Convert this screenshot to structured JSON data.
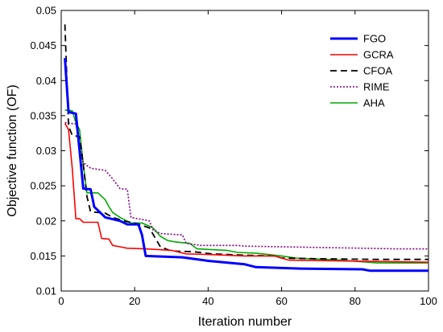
{
  "chart_data": {
    "type": "line",
    "xlabel": "Iteration number",
    "ylabel": "Objective function (OF)",
    "xlim": [
      0,
      100
    ],
    "ylim": [
      0.01,
      0.05
    ],
    "xticks": [
      0,
      20,
      40,
      60,
      80,
      100
    ],
    "xtick_labels": [
      "0",
      "20",
      "40",
      "60",
      "80",
      "100"
    ],
    "yticks": [
      0.01,
      0.015,
      0.02,
      0.025,
      0.03,
      0.035,
      0.04,
      0.045,
      0.05
    ],
    "ytick_labels": [
      "0.01",
      "0.015",
      "0.02",
      "0.025",
      "0.03",
      "0.035",
      "0.04",
      "0.045",
      "0.05"
    ],
    "grid": false,
    "legend_position": "top-right",
    "series": [
      {
        "name": "FGO",
        "color": "#0000ff",
        "style": "solid-thick",
        "points": [
          [
            1,
            0.0432
          ],
          [
            2,
            0.0355
          ],
          [
            4,
            0.0353
          ],
          [
            5,
            0.03
          ],
          [
            6,
            0.0246
          ],
          [
            8,
            0.0245
          ],
          [
            9,
            0.022
          ],
          [
            12,
            0.0205
          ],
          [
            16,
            0.02
          ],
          [
            18,
            0.0195
          ],
          [
            21,
            0.0195
          ],
          [
            22,
            0.018
          ],
          [
            23,
            0.015
          ],
          [
            33,
            0.0148
          ],
          [
            40,
            0.0143
          ],
          [
            50,
            0.0138
          ],
          [
            53,
            0.0134
          ],
          [
            65,
            0.0132
          ],
          [
            82,
            0.0131
          ],
          [
            84,
            0.0129
          ],
          [
            100,
            0.0129
          ]
        ]
      },
      {
        "name": "GCRA",
        "color": "#ff0000",
        "style": "solid",
        "points": [
          [
            1,
            0.0339
          ],
          [
            2,
            0.033
          ],
          [
            3,
            0.0275
          ],
          [
            4,
            0.0203
          ],
          [
            5,
            0.0203
          ],
          [
            6,
            0.0198
          ],
          [
            10,
            0.0198
          ],
          [
            11,
            0.0175
          ],
          [
            13,
            0.0174
          ],
          [
            14,
            0.0165
          ],
          [
            16,
            0.0163
          ],
          [
            18,
            0.0161
          ],
          [
            23,
            0.016
          ],
          [
            30,
            0.0158
          ],
          [
            34,
            0.0153
          ],
          [
            40,
            0.0152
          ],
          [
            50,
            0.015
          ],
          [
            58,
            0.015
          ],
          [
            62,
            0.0144
          ],
          [
            100,
            0.0141
          ]
        ]
      },
      {
        "name": "CFOA",
        "color": "#000000",
        "style": "dashed",
        "points": [
          [
            1,
            0.048
          ],
          [
            2,
            0.0335
          ],
          [
            3,
            0.0322
          ],
          [
            5,
            0.032
          ],
          [
            6,
            0.028
          ],
          [
            7,
            0.0235
          ],
          [
            8,
            0.0213
          ],
          [
            12,
            0.0211
          ],
          [
            14,
            0.0205
          ],
          [
            17,
            0.02
          ],
          [
            20,
            0.0197
          ],
          [
            24,
            0.019
          ],
          [
            27,
            0.0163
          ],
          [
            30,
            0.0157
          ],
          [
            36,
            0.0156
          ],
          [
            41,
            0.0153
          ],
          [
            50,
            0.0151
          ],
          [
            58,
            0.015
          ],
          [
            60,
            0.0147
          ],
          [
            70,
            0.0146
          ],
          [
            86,
            0.0145
          ],
          [
            100,
            0.0145
          ]
        ]
      },
      {
        "name": "RIME",
        "color": "#800080",
        "style": "dotted",
        "points": [
          [
            1,
            0.034
          ],
          [
            4,
            0.0338
          ],
          [
            5,
            0.0307
          ],
          [
            6,
            0.0283
          ],
          [
            8,
            0.0275
          ],
          [
            12,
            0.0272
          ],
          [
            14,
            0.026
          ],
          [
            16,
            0.0246
          ],
          [
            18,
            0.0245
          ],
          [
            19,
            0.0205
          ],
          [
            24,
            0.02
          ],
          [
            25,
            0.0187
          ],
          [
            27,
            0.0182
          ],
          [
            33,
            0.018
          ],
          [
            34,
            0.0168
          ],
          [
            38,
            0.0165
          ],
          [
            48,
            0.0165
          ],
          [
            50,
            0.0164
          ],
          [
            92,
            0.016
          ],
          [
            100,
            0.016
          ]
        ]
      },
      {
        "name": "AHA",
        "color": "#00aa00",
        "style": "solid",
        "points": [
          [
            1,
            0.0358
          ],
          [
            3,
            0.0357
          ],
          [
            4,
            0.034
          ],
          [
            5,
            0.033
          ],
          [
            6,
            0.028
          ],
          [
            7,
            0.024
          ],
          [
            10,
            0.024
          ],
          [
            12,
            0.023
          ],
          [
            13,
            0.022
          ],
          [
            14,
            0.0212
          ],
          [
            16,
            0.0205
          ],
          [
            19,
            0.0197
          ],
          [
            22,
            0.0197
          ],
          [
            25,
            0.019
          ],
          [
            27,
            0.0178
          ],
          [
            29,
            0.0172
          ],
          [
            31,
            0.017
          ],
          [
            35,
            0.0168
          ],
          [
            37,
            0.016
          ],
          [
            45,
            0.0158
          ],
          [
            48,
            0.0155
          ],
          [
            53,
            0.0154
          ],
          [
            60,
            0.015
          ],
          [
            64,
            0.0147
          ],
          [
            68,
            0.0146
          ],
          [
            76,
            0.0144
          ],
          [
            86,
            0.014
          ],
          [
            100,
            0.014
          ]
        ]
      }
    ]
  }
}
